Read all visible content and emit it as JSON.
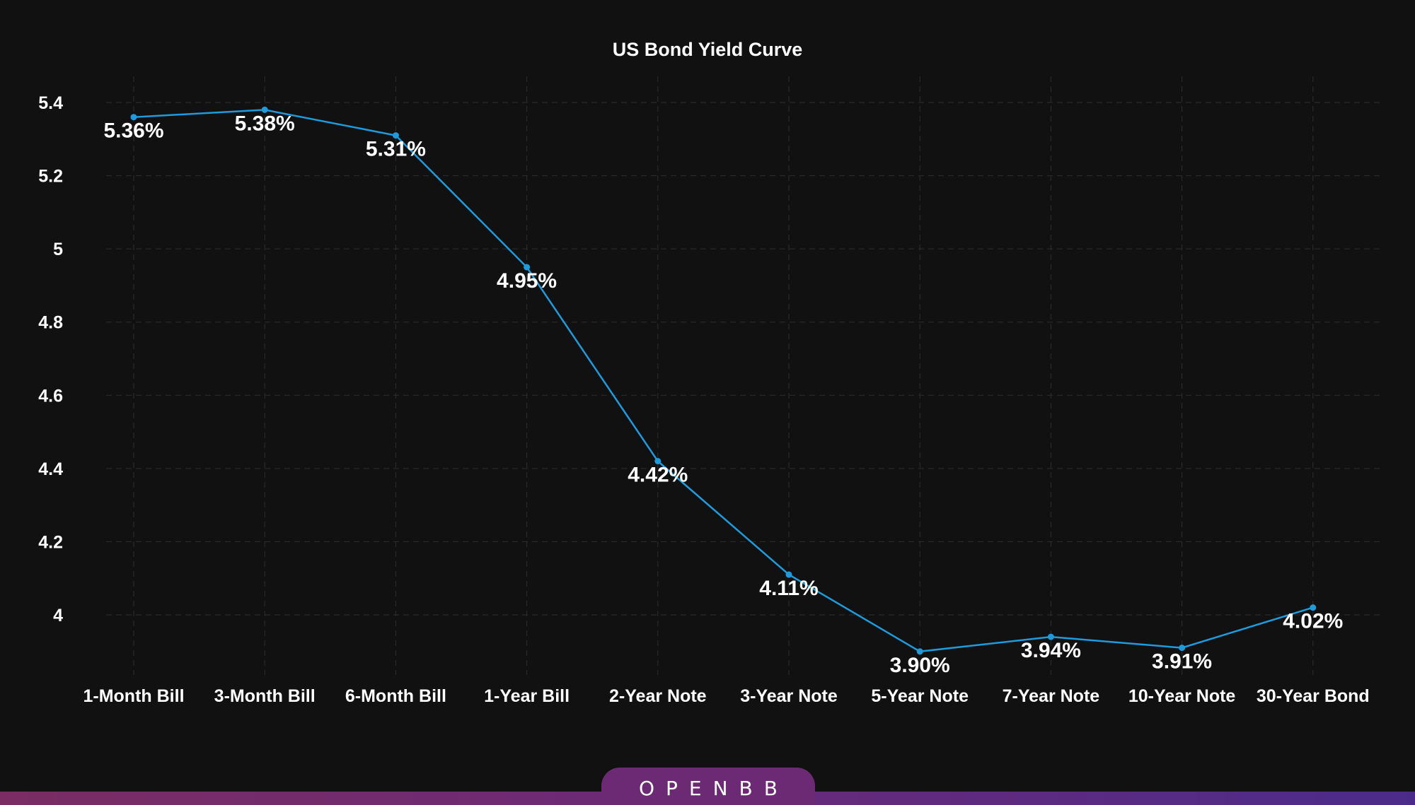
{
  "brand": {
    "logo_text": "OPENBB"
  },
  "colors": {
    "background": "#111112",
    "line": "#1e9bdc",
    "grid": "#2e2e30",
    "text": "#ffffff",
    "brand_purple": "#6b2a73"
  },
  "chart_data": {
    "type": "line",
    "title": "US Bond Yield Curve",
    "xlabel": "",
    "ylabel": "",
    "categories": [
      "1-Month Bill",
      "3-Month Bill",
      "6-Month Bill",
      "1-Year Bill",
      "2-Year Note",
      "3-Year Note",
      "5-Year Note",
      "7-Year Note",
      "10-Year Note",
      "30-Year Bond"
    ],
    "series": [
      {
        "values": [
          5.36,
          5.38,
          5.31,
          4.95,
          4.42,
          4.11,
          3.9,
          3.94,
          3.91,
          4.02
        ],
        "data_labels": [
          "5.36%",
          "5.38%",
          "5.31%",
          "4.95%",
          "4.42%",
          "4.11%",
          "3.90%",
          "3.94%",
          "3.91%",
          "4.02%"
        ]
      }
    ],
    "yticks": [
      4,
      4.2,
      4.4,
      4.6,
      4.8,
      5,
      5.2,
      5.4
    ],
    "ytick_labels": [
      "4",
      "4.2",
      "4.4",
      "4.6",
      "4.8",
      "5",
      "5.2",
      "5.4"
    ],
    "ylim": [
      3.82,
      5.45
    ],
    "grid": true,
    "legend": "none"
  }
}
